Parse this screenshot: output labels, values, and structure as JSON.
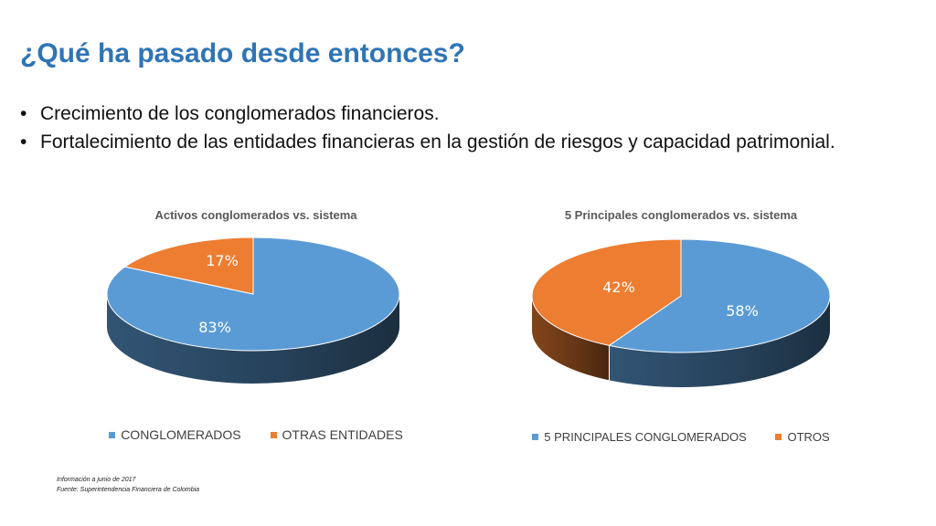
{
  "slide": {
    "title": "¿Qué ha pasado desde entonces?",
    "bullets": [
      "Crecimiento de los conglomerados financieros.",
      "Fortalecimiento de las entidades financieras en la gestión de riesgos y capacidad patrimonial."
    ],
    "bullet_symbol": "•",
    "footnotes": [
      "Información a junio de 2017",
      "Fuente: Superintendencia Financiera de Colombia"
    ]
  },
  "chart_data": [
    {
      "type": "pie",
      "title": "Activos conglomerados vs. sistema",
      "categories": [
        "CONGLOMERADOS",
        "OTRAS ENTIDADES"
      ],
      "values": [
        83,
        17
      ],
      "labels": [
        "83%",
        "17%"
      ],
      "colors": [
        "#5b9bd5",
        "#ed7d31"
      ],
      "legend": "bottom"
    },
    {
      "type": "pie",
      "title": "5 Principales conglomerados vs. sistema",
      "categories": [
        "5 PRINCIPALES CONGLOMERADOS",
        "OTROS"
      ],
      "values": [
        58,
        42
      ],
      "labels": [
        "58%",
        "42%"
      ],
      "colors": [
        "#5b9bd5",
        "#ed7d31"
      ],
      "legend": "bottom"
    }
  ]
}
